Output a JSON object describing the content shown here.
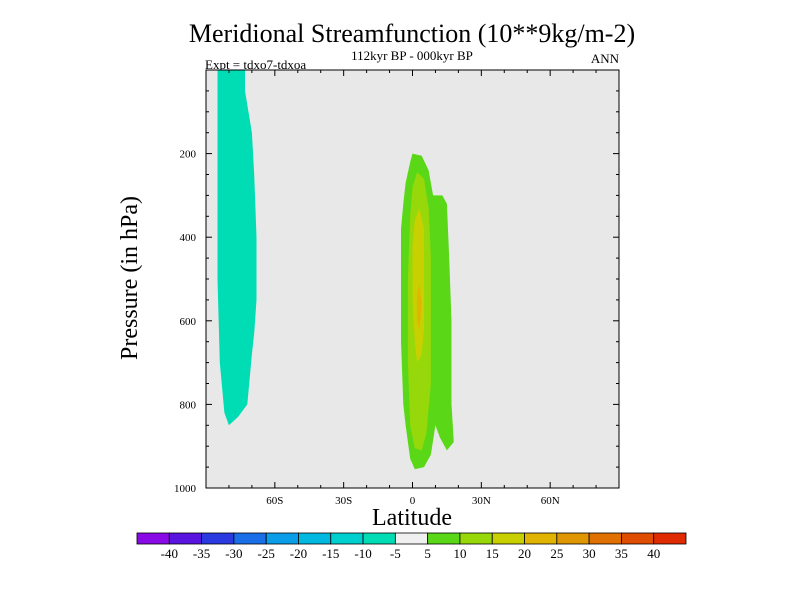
{
  "chart_data": {
    "type": "contour",
    "title": "Meridional Streamfunction (10**9kg/m-2)",
    "subtitle": "112kyr BP - 000kyr BP",
    "expt_label": "Expt = tdxo7-tdxoa",
    "season": "ANN",
    "xlabel": "Latitude",
    "ylabel": "Pressure (in hPa)",
    "xlim": [
      -90,
      90
    ],
    "ylim": [
      1000,
      0
    ],
    "x_ticks": [
      {
        "value": -60,
        "label": "60S"
      },
      {
        "value": -30,
        "label": "30S"
      },
      {
        "value": 0,
        "label": "0"
      },
      {
        "value": 30,
        "label": "30N"
      },
      {
        "value": 60,
        "label": "60N"
      }
    ],
    "y_ticks": [
      {
        "value": 200,
        "label": "200"
      },
      {
        "value": 400,
        "label": "400"
      },
      {
        "value": 600,
        "label": "600"
      },
      {
        "value": 800,
        "label": "800"
      },
      {
        "value": 1000,
        "label": "1000"
      }
    ],
    "background_color": "#e8e8e8",
    "colorbar": {
      "labels": [
        "-40",
        "-35",
        "-30",
        "-25",
        "-20",
        "-15",
        "-10",
        "-5",
        "5",
        "10",
        "15",
        "20",
        "25",
        "30",
        "35",
        "40"
      ],
      "colors": [
        "#8a0ae6",
        "#5a14e0",
        "#2a3ae0",
        "#1a6ee8",
        "#0a9ee8",
        "#00b8e0",
        "#00cfd0",
        "#00dcb4",
        "#f0f0f0",
        "#5ad818",
        "#96d80a",
        "#c8d000",
        "#e0b400",
        "#e09600",
        "#e07000",
        "#e04c00",
        "#e02a00"
      ]
    },
    "regions": [
      {
        "name": "negative-cell",
        "level": "-10 to -5",
        "color": "#00dcb4",
        "outline": [
          [
            -85,
            0
          ],
          [
            -73,
            0
          ],
          [
            -73,
            50
          ],
          [
            -70,
            150
          ],
          [
            -69,
            250
          ],
          [
            -68,
            400
          ],
          [
            -68,
            550
          ],
          [
            -69,
            630
          ],
          [
            -70,
            680
          ],
          [
            -72,
            800
          ],
          [
            -76,
            830
          ],
          [
            -80,
            850
          ],
          [
            -82,
            820
          ],
          [
            -84,
            700
          ],
          [
            -85,
            500
          ],
          [
            -85,
            200
          ]
        ]
      },
      {
        "name": "positive-cell-outer",
        "level": "5 to 10",
        "color": "#5ad818",
        "outline": [
          [
            0,
            200
          ],
          [
            4,
            205
          ],
          [
            7,
            240
          ],
          [
            9,
            300
          ],
          [
            13,
            300
          ],
          [
            15,
            320
          ],
          [
            16,
            450
          ],
          [
            17,
            600
          ],
          [
            17,
            800
          ],
          [
            18,
            890
          ],
          [
            15,
            910
          ],
          [
            12,
            880
          ],
          [
            10,
            850
          ],
          [
            8,
            920
          ],
          [
            5,
            950
          ],
          [
            1,
            955
          ],
          [
            -1,
            930
          ],
          [
            -3,
            850
          ],
          [
            -4,
            800
          ],
          [
            -5,
            650
          ],
          [
            -5,
            500
          ],
          [
            -5,
            380
          ],
          [
            -4,
            320
          ],
          [
            -3,
            270
          ],
          [
            -1,
            220
          ]
        ]
      },
      {
        "name": "positive-cell-middle",
        "level": "10 to 15",
        "color": "#96d80a",
        "outline": [
          [
            2,
            245
          ],
          [
            5,
            260
          ],
          [
            7,
            330
          ],
          [
            8,
            450
          ],
          [
            8,
            600
          ],
          [
            8,
            750
          ],
          [
            6,
            870
          ],
          [
            4,
            910
          ],
          [
            1,
            905
          ],
          [
            -1,
            850
          ],
          [
            -2,
            700
          ],
          [
            -2,
            500
          ],
          [
            -1,
            350
          ],
          [
            0,
            280
          ]
        ]
      },
      {
        "name": "positive-cell-inner",
        "level": "15 to 20",
        "color": "#c8d000",
        "outline": [
          [
            3,
            330
          ],
          [
            5,
            380
          ],
          [
            5,
            500
          ],
          [
            5,
            620
          ],
          [
            4,
            680
          ],
          [
            2,
            700
          ],
          [
            1,
            650
          ],
          [
            0,
            550
          ],
          [
            0,
            420
          ],
          [
            1,
            360
          ]
        ]
      },
      {
        "name": "positive-cell-core",
        "level": "20 to 25",
        "color": "#e0b400",
        "outline": [
          [
            3,
            510
          ],
          [
            4,
            560
          ],
          [
            3,
            620
          ],
          [
            2,
            600
          ],
          [
            2,
            540
          ]
        ]
      }
    ]
  }
}
